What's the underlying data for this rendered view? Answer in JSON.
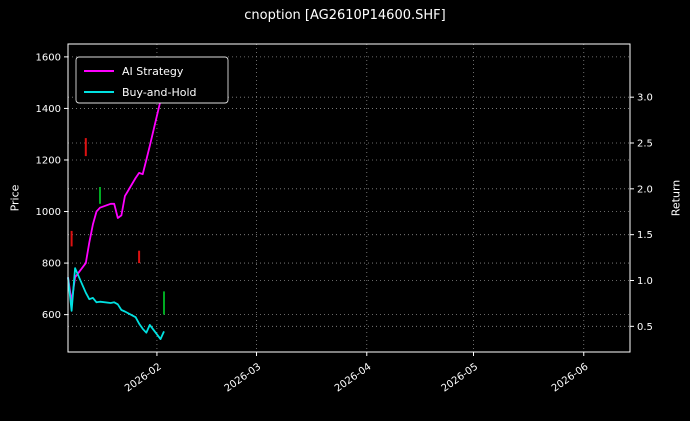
{
  "chart_data": {
    "type": "line",
    "title": "cnoption [AG2610P14600.SHF]",
    "background": "#000000",
    "text_color": "#ffffff",
    "grid": "dotted",
    "legend_position": "upper-left",
    "ylabel_left": "Price",
    "ylabel_right": "Return",
    "x_domain": [
      "2026-01-07",
      "2026-06-14"
    ],
    "y_left_domain": [
      455,
      1650
    ],
    "y_right_domain": [
      0.22,
      3.58
    ],
    "y_left_ticks": [
      600,
      800,
      1000,
      1200,
      1400,
      1600
    ],
    "y_right_ticks": [
      0.5,
      1.0,
      1.5,
      2.0,
      2.5,
      3.0
    ],
    "x_ticks": [
      {
        "label": "2026-02",
        "date": "2026-02-01"
      },
      {
        "label": "2026-03",
        "date": "2026-03-01"
      },
      {
        "label": "2026-04",
        "date": "2026-04-01"
      },
      {
        "label": "2026-05",
        "date": "2026-05-01"
      },
      {
        "label": "2026-06",
        "date": "2026-06-01"
      }
    ],
    "series": [
      {
        "name": "AI Strategy",
        "color": "#ff00ff",
        "axis": "left",
        "dates": [
          "2026-01-07",
          "2026-01-08",
          "2026-01-09",
          "2026-01-12",
          "2026-01-13",
          "2026-01-14",
          "2026-01-15",
          "2026-01-16",
          "2026-01-19",
          "2026-01-20",
          "2026-01-21",
          "2026-01-22",
          "2026-01-23",
          "2026-01-26",
          "2026-01-27",
          "2026-01-28",
          "2026-01-29",
          "2026-01-30",
          "2026-02-02",
          "2026-02-03"
        ],
        "values": [
          745,
          650,
          745,
          800,
          880,
          950,
          1000,
          1015,
          1030,
          1030,
          975,
          985,
          1060,
          1130,
          1150,
          1145,
          1200,
          1255,
          1430,
          1445
        ]
      },
      {
        "name": "Buy-and-Hold",
        "color": "#00e1e1",
        "axis": "left",
        "dates": [
          "2026-01-07",
          "2026-01-08",
          "2026-01-09",
          "2026-01-12",
          "2026-01-13",
          "2026-01-14",
          "2026-01-15",
          "2026-01-16",
          "2026-01-19",
          "2026-01-20",
          "2026-01-21",
          "2026-01-22",
          "2026-01-23",
          "2026-01-26",
          "2026-01-27",
          "2026-01-28",
          "2026-01-29",
          "2026-01-30",
          "2026-02-02",
          "2026-02-03"
        ],
        "values": [
          745,
          615,
          780,
          685,
          660,
          665,
          648,
          650,
          645,
          648,
          640,
          618,
          612,
          590,
          565,
          545,
          530,
          560,
          505,
          535
        ]
      }
    ],
    "price_marks": [
      {
        "date": "2026-01-08",
        "low": 865,
        "high": 925,
        "color": "#dd1111"
      },
      {
        "date": "2026-01-12",
        "low": 1215,
        "high": 1285,
        "color": "#dd1111"
      },
      {
        "date": "2026-01-16",
        "low": 1030,
        "high": 1095,
        "color": "#00aa22"
      },
      {
        "date": "2026-01-27",
        "low": 800,
        "high": 848,
        "color": "#dd1111"
      },
      {
        "date": "2026-02-03",
        "low": 600,
        "high": 690,
        "color": "#00aa22"
      }
    ]
  }
}
